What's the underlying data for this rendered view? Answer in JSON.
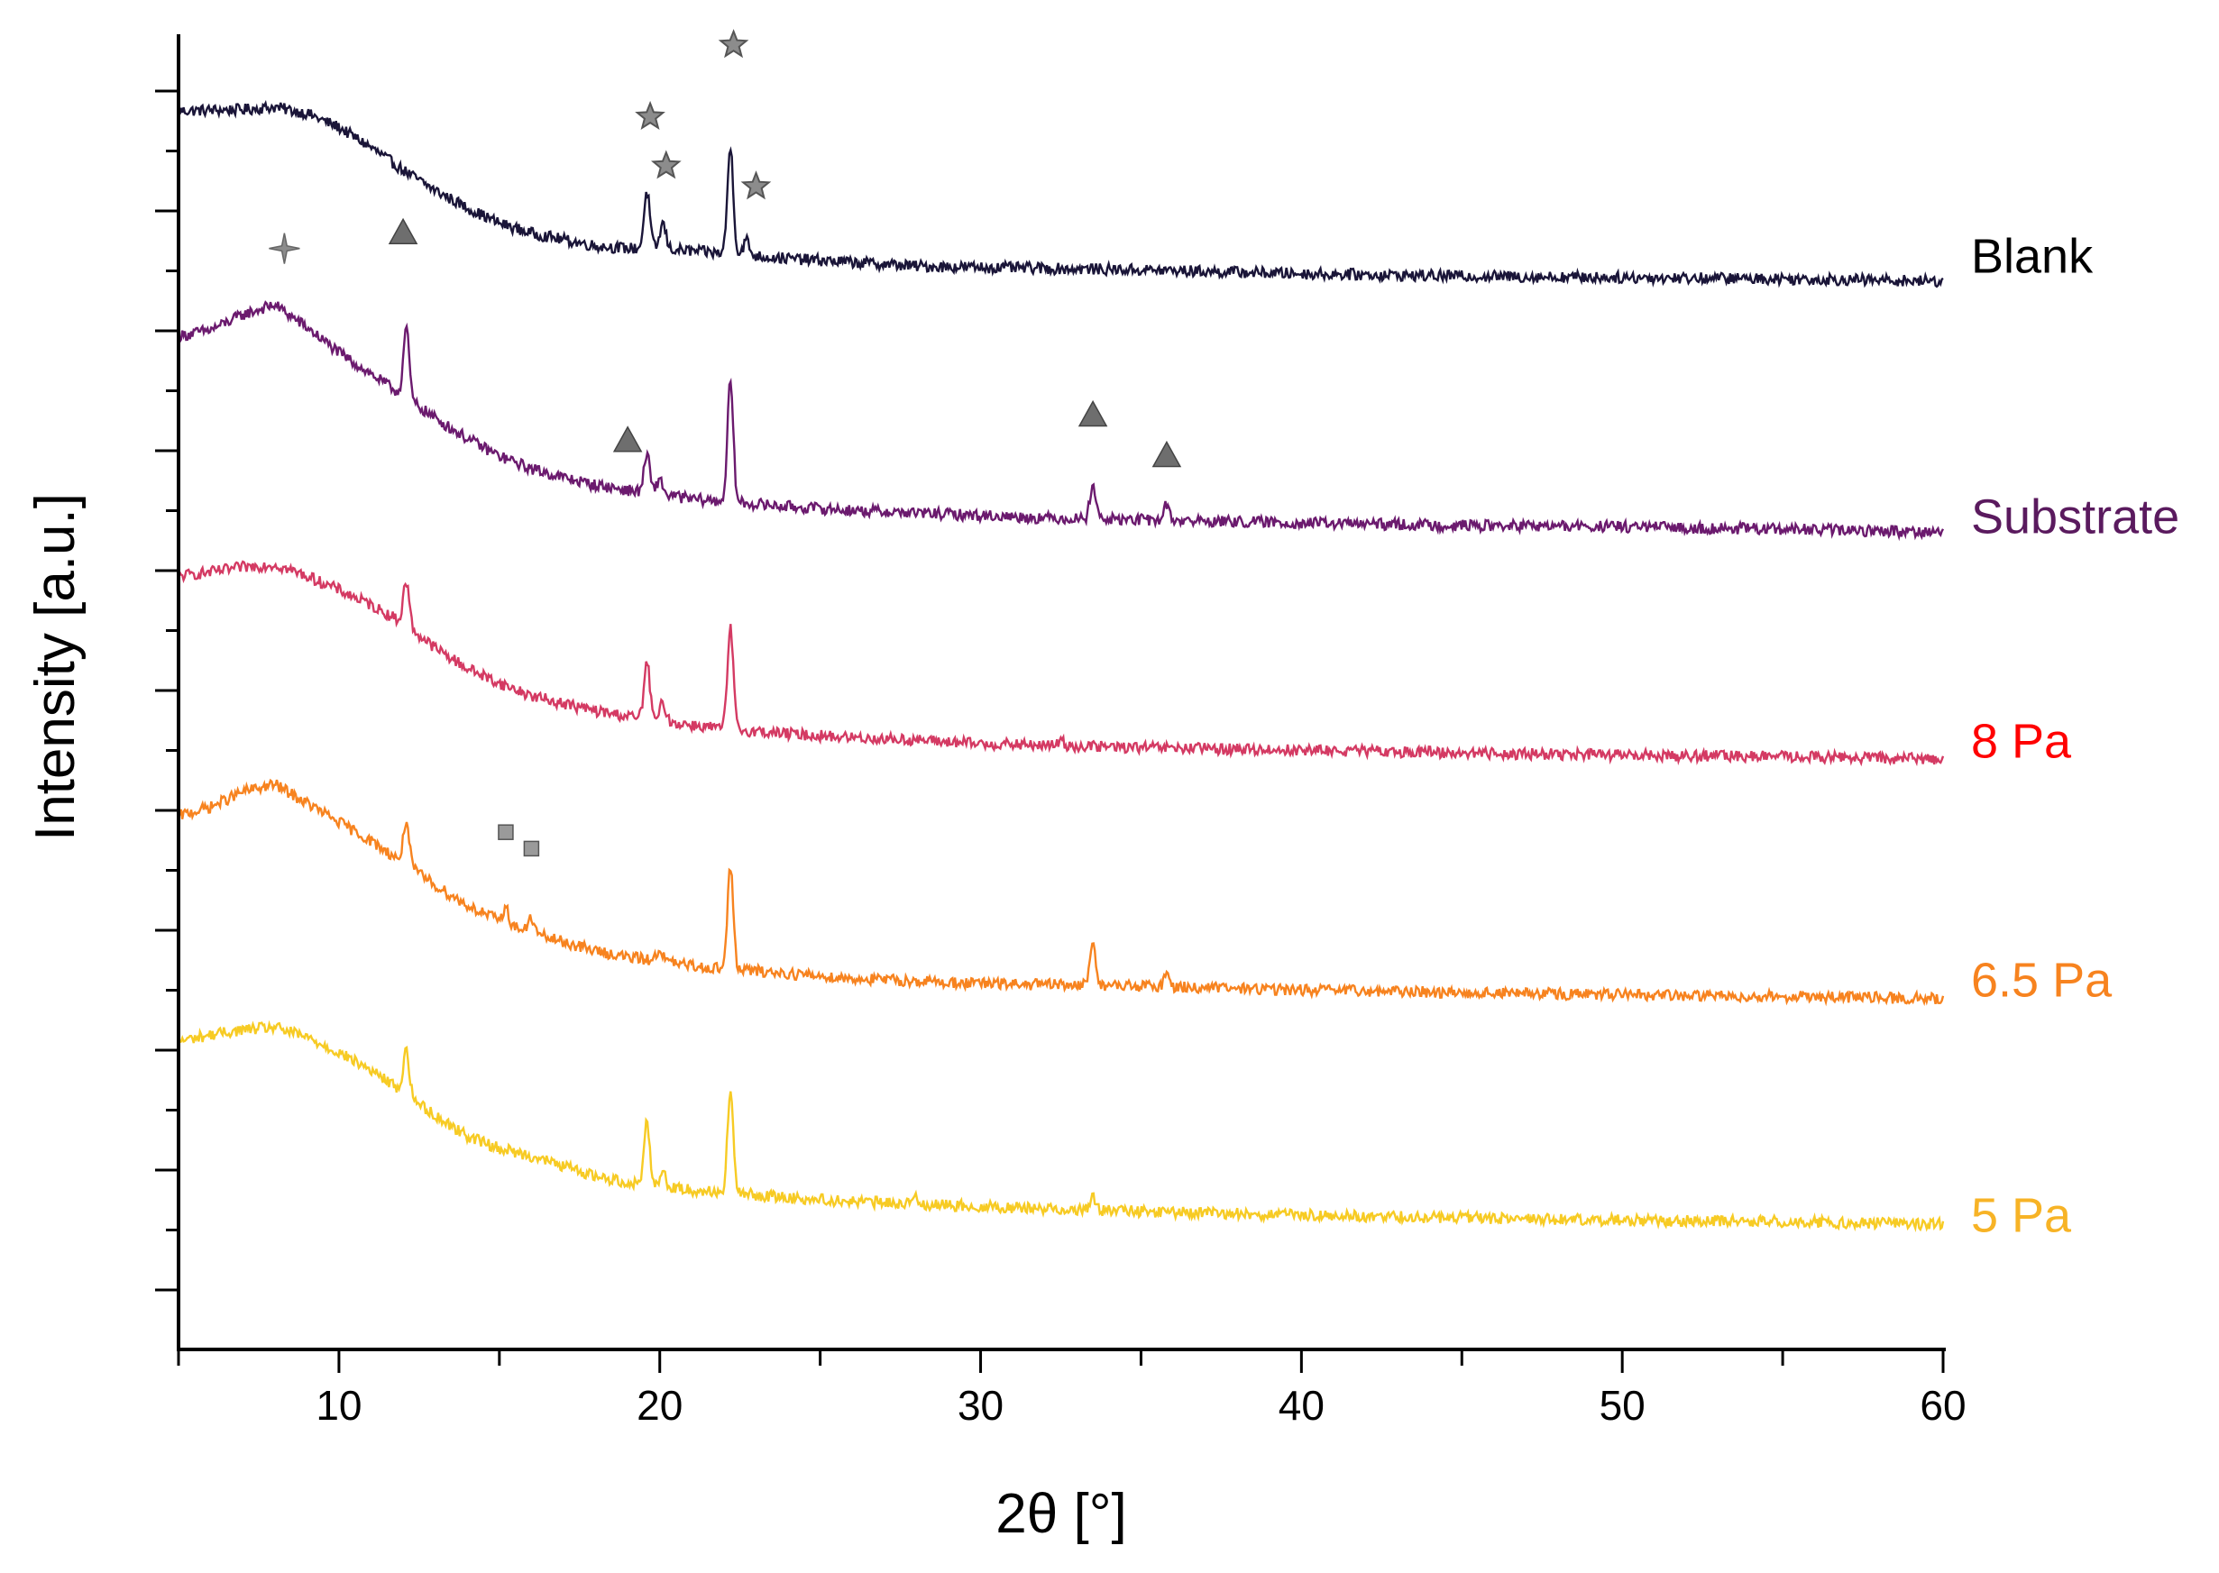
{
  "chart_data": {
    "type": "line",
    "xlabel": "2θ [°]",
    "ylabel": "Intensity [a.u.]",
    "xlim": [
      5,
      60
    ],
    "xticks": [
      10,
      20,
      30,
      40,
      50,
      60
    ],
    "y_tick_labels": "none",
    "grid": false,
    "legend": "inline labels at right end of each trace",
    "series": [
      {
        "name": "Blank",
        "color": "#1a1538",
        "label_color": "#000000",
        "baseline_end": 0.0,
        "points": [
          [
            5,
            1.35
          ],
          [
            7,
            1.36
          ],
          [
            8,
            1.38
          ],
          [
            9,
            1.33
          ],
          [
            10,
            1.22
          ],
          [
            11,
            1.06
          ],
          [
            12,
            0.88
          ],
          [
            13,
            0.72
          ],
          [
            14,
            0.58
          ],
          [
            15,
            0.46
          ],
          [
            16,
            0.38
          ],
          [
            17,
            0.33
          ],
          [
            18,
            0.28
          ],
          [
            19,
            0.26
          ],
          [
            20,
            0.26
          ],
          [
            21,
            0.24
          ],
          [
            22,
            0.22
          ],
          [
            24,
            0.18
          ],
          [
            26,
            0.15
          ],
          [
            28,
            0.12
          ],
          [
            30,
            0.11
          ],
          [
            35,
            0.09
          ],
          [
            40,
            0.06
          ],
          [
            45,
            0.04
          ],
          [
            50,
            0.03
          ],
          [
            55,
            0.02
          ],
          [
            60,
            0.0
          ]
        ],
        "peaks": [
          [
            19.6,
            0.45
          ],
          [
            20.1,
            0.2
          ],
          [
            22.2,
            0.85
          ],
          [
            22.7,
            0.12
          ]
        ],
        "markers": [
          {
            "shape": "star",
            "x": 19.7,
            "offset": 0.8
          },
          {
            "shape": "star",
            "x": 20.2,
            "offset": 0.55
          },
          {
            "shape": "star",
            "x": 22.3,
            "offset": 1.2
          },
          {
            "shape": "star",
            "x": 23.0,
            "offset": 0.55
          }
        ]
      },
      {
        "name": "Substrate",
        "color": "#6b1a6e",
        "label_color": "#5a1a5e",
        "baseline_end": 0.0,
        "points": [
          [
            5,
            1.55
          ],
          [
            6,
            1.6
          ],
          [
            7,
            1.72
          ],
          [
            8,
            1.8
          ],
          [
            9,
            1.62
          ],
          [
            10,
            1.42
          ],
          [
            11,
            1.25
          ],
          [
            12,
            1.08
          ],
          [
            13,
            0.9
          ],
          [
            14,
            0.74
          ],
          [
            15,
            0.6
          ],
          [
            16,
            0.5
          ],
          [
            17,
            0.43
          ],
          [
            18,
            0.37
          ],
          [
            19,
            0.33
          ],
          [
            20,
            0.3
          ],
          [
            21,
            0.26
          ],
          [
            22,
            0.24
          ],
          [
            24,
            0.2
          ],
          [
            26,
            0.17
          ],
          [
            28,
            0.15
          ],
          [
            30,
            0.13
          ],
          [
            32,
            0.11
          ],
          [
            34,
            0.1
          ],
          [
            36,
            0.09
          ],
          [
            40,
            0.07
          ],
          [
            45,
            0.05
          ],
          [
            50,
            0.04
          ],
          [
            55,
            0.02
          ],
          [
            60,
            0.0
          ]
        ],
        "peaks": [
          [
            12.1,
            0.55
          ],
          [
            19.6,
            0.3
          ],
          [
            20.0,
            0.12
          ],
          [
            22.2,
            0.95
          ],
          [
            33.5,
            0.28
          ],
          [
            35.8,
            0.12
          ]
        ],
        "markers": [
          {
            "shape": "cross-star",
            "x": 8.3,
            "offset": 0.5
          },
          {
            "shape": "triangle",
            "x": 12.0,
            "offset": 1.0
          },
          {
            "shape": "triangle",
            "x": 19.0,
            "offset": 0.4
          },
          {
            "shape": "triangle",
            "x": 33.5,
            "offset": 0.55
          },
          {
            "shape": "triangle",
            "x": 35.8,
            "offset": 0.4
          }
        ]
      },
      {
        "name": "8 Pa",
        "color": "#d43a63",
        "label_color": "#ff0000",
        "baseline_end": 0.0,
        "points": [
          [
            5,
            1.45
          ],
          [
            6,
            1.48
          ],
          [
            7,
            1.52
          ],
          [
            8,
            1.54
          ],
          [
            9,
            1.45
          ],
          [
            10,
            1.34
          ],
          [
            11,
            1.22
          ],
          [
            12,
            1.08
          ],
          [
            13,
            0.88
          ],
          [
            14,
            0.72
          ],
          [
            15,
            0.6
          ],
          [
            16,
            0.5
          ],
          [
            17,
            0.44
          ],
          [
            18,
            0.38
          ],
          [
            19,
            0.34
          ],
          [
            20,
            0.3
          ],
          [
            21,
            0.27
          ],
          [
            22,
            0.24
          ],
          [
            24,
            0.2
          ],
          [
            26,
            0.17
          ],
          [
            28,
            0.15
          ],
          [
            30,
            0.12
          ],
          [
            35,
            0.09
          ],
          [
            40,
            0.07
          ],
          [
            45,
            0.05
          ],
          [
            50,
            0.03
          ],
          [
            55,
            0.02
          ],
          [
            60,
            0.0
          ]
        ],
        "peaks": [
          [
            12.1,
            0.35
          ],
          [
            19.6,
            0.45
          ],
          [
            20.1,
            0.15
          ],
          [
            22.2,
            0.8
          ],
          [
            32.5,
            0.04
          ]
        ],
        "markers": []
      },
      {
        "name": "6.5 Pa",
        "color": "#f7831f",
        "label_color": "#f7831f",
        "baseline_end": 0.0,
        "points": [
          [
            5,
            1.45
          ],
          [
            6,
            1.52
          ],
          [
            7,
            1.64
          ],
          [
            8,
            1.7
          ],
          [
            9,
            1.55
          ],
          [
            10,
            1.4
          ],
          [
            11,
            1.25
          ],
          [
            12,
            1.08
          ],
          [
            13,
            0.9
          ],
          [
            14,
            0.74
          ],
          [
            15,
            0.62
          ],
          [
            16,
            0.52
          ],
          [
            17,
            0.45
          ],
          [
            18,
            0.38
          ],
          [
            19,
            0.33
          ],
          [
            20,
            0.3
          ],
          [
            21,
            0.26
          ],
          [
            22,
            0.24
          ],
          [
            24,
            0.2
          ],
          [
            26,
            0.16
          ],
          [
            28,
            0.14
          ],
          [
            30,
            0.12
          ],
          [
            35,
            0.1
          ],
          [
            40,
            0.07
          ],
          [
            45,
            0.05
          ],
          [
            50,
            0.03
          ],
          [
            55,
            0.02
          ],
          [
            60,
            0.0
          ]
        ],
        "peaks": [
          [
            12.1,
            0.35
          ],
          [
            15.2,
            0.12
          ],
          [
            16.0,
            0.12
          ],
          [
            20.0,
            0.1
          ],
          [
            22.2,
            0.8
          ],
          [
            33.5,
            0.35
          ],
          [
            35.8,
            0.1
          ]
        ],
        "markers": [
          {
            "shape": "square",
            "x": 15.2,
            "offset": 0.6
          },
          {
            "shape": "square",
            "x": 16.0,
            "offset": 0.55
          }
        ]
      },
      {
        "name": "5 Pa",
        "color": "#f7cb24",
        "label_color": "#f7b326",
        "baseline_end": 0.0,
        "points": [
          [
            5,
            1.45
          ],
          [
            6,
            1.5
          ],
          [
            7,
            1.54
          ],
          [
            8,
            1.56
          ],
          [
            9,
            1.48
          ],
          [
            10,
            1.36
          ],
          [
            11,
            1.22
          ],
          [
            12,
            1.05
          ],
          [
            13,
            0.86
          ],
          [
            14,
            0.7
          ],
          [
            15,
            0.6
          ],
          [
            16,
            0.54
          ],
          [
            17,
            0.46
          ],
          [
            18,
            0.38
          ],
          [
            19,
            0.33
          ],
          [
            20,
            0.3
          ],
          [
            21,
            0.27
          ],
          [
            22,
            0.25
          ],
          [
            24,
            0.21
          ],
          [
            26,
            0.18
          ],
          [
            28,
            0.16
          ],
          [
            30,
            0.14
          ],
          [
            35,
            0.1
          ],
          [
            40,
            0.07
          ],
          [
            45,
            0.05
          ],
          [
            50,
            0.03
          ],
          [
            55,
            0.02
          ],
          [
            60,
            0.0
          ]
        ],
        "peaks": [
          [
            12.1,
            0.35
          ],
          [
            19.6,
            0.5
          ],
          [
            20.1,
            0.12
          ],
          [
            22.2,
            0.8
          ],
          [
            28.0,
            0.05
          ],
          [
            33.5,
            0.1
          ]
        ],
        "markers": []
      }
    ]
  }
}
